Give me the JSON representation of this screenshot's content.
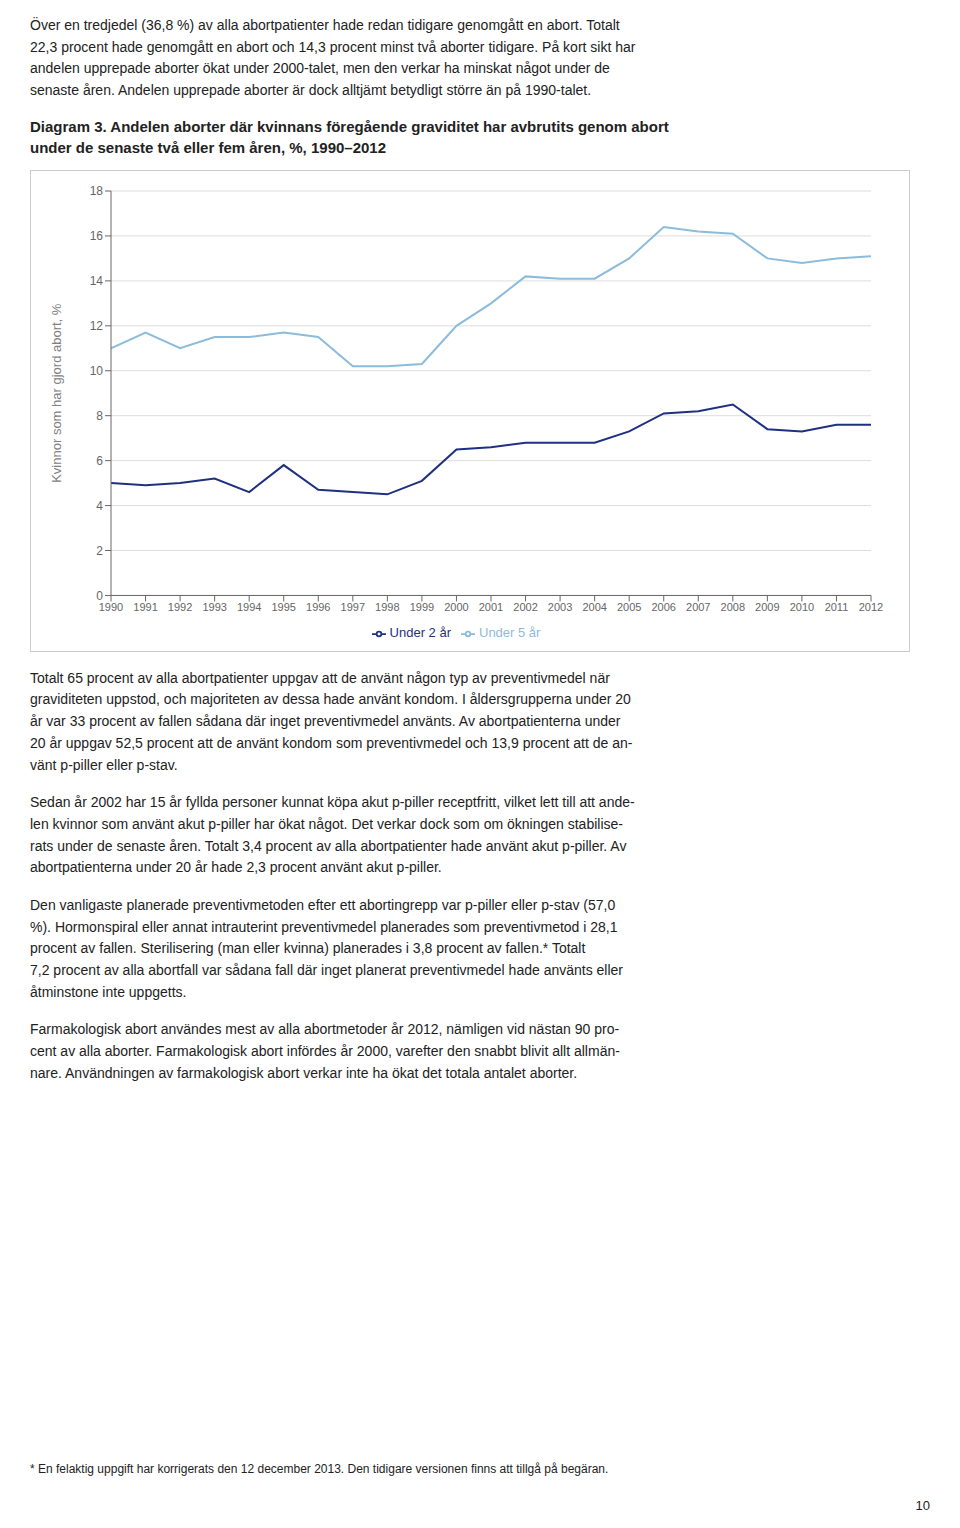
{
  "chart_data": {
    "type": "line",
    "title": "Diagram 3. Andelen aborter där kvinnans föregående graviditet har avbrutits genom abort\nunder de senaste två eller fem åren, %, 1990–2012",
    "y_label": "Kvinnor som har gjord abort, %",
    "x": [
      1990,
      1991,
      1992,
      1993,
      1994,
      1995,
      1996,
      1997,
      1998,
      1999,
      2000,
      2001,
      2002,
      2003,
      2004,
      2005,
      2006,
      2007,
      2008,
      2009,
      2010,
      2011,
      2012
    ],
    "xlim": [
      1990,
      2012
    ],
    "xticks": [
      1990,
      1991,
      1992,
      1993,
      1994,
      1995,
      1996,
      1997,
      1998,
      1999,
      2000,
      2001,
      2002,
      2003,
      2004,
      2005,
      2006,
      2007,
      2008,
      2009,
      2010,
      2011,
      2012
    ],
    "ylim": [
      0,
      18
    ],
    "yticks": [
      0,
      2,
      4,
      6,
      8,
      10,
      12,
      14,
      16,
      18
    ],
    "grid": true,
    "legend": "bottom",
    "series": [
      {
        "name": "Under 5 år",
        "color": "#8BBCDB",
        "values": [
          11.0,
          11.7,
          11.0,
          11.5,
          11.5,
          11.7,
          11.5,
          10.2,
          10.2,
          10.3,
          12.0,
          13.0,
          14.2,
          14.1,
          14.1,
          15.0,
          16.4,
          16.2,
          16.1,
          15.0,
          14.8,
          15.0,
          15.1
        ]
      },
      {
        "name": "Under 2 år",
        "color": "#1F3080",
        "values": [
          5.0,
          4.9,
          5.0,
          5.2,
          4.6,
          5.8,
          4.7,
          4.6,
          4.5,
          5.1,
          6.5,
          6.6,
          6.8,
          6.8,
          6.8,
          7.3,
          8.1,
          8.2,
          8.5,
          7.4,
          7.3,
          7.6,
          7.6
        ]
      }
    ],
    "annotations": [
      "Över en tredjedel (36,8 %) av alla abortpatienter hade redan tidigare genomgått en abort. Totalt\n22,3 procent hade genomgått en abort och 14,3 procent minst två aborter tidigare. På kort sikt har\nandelen upprepade aborter ökat under 2000-talet, men den verkar ha minskat något under de\nsenaste åren. Andelen upprepade aborter är dock alltjämt betydligt större än på 1990-talet.",
      "Totalt 65 procent av alla abortpatienter uppgav att de använt någon typ av preventivmedel när\ngraviditeten uppstod, och majoriteten av dessa hade använt kondom. I åldersgrupperna under 20\når var 33 procent av fallen sådana där inget preventivmedel använts. Av abortpatienterna under\n20 år uppgav 52,5 procent att de använt kondom som preventivmedel och 13,9 procent att de an-\nvänt p-piller eller p-stav.",
      "Sedan år 2002 har 15 år fyllda personer kunnat köpa akut p-piller receptfritt, vilket lett till att ande-\nlen kvinnor som använt akut p-piller har ökat något. Det verkar dock som om ökningen stabilise-\nrats under de senaste åren. Totalt 3,4 procent av alla abortpatienter hade använt akut p-piller. Av\nabortpatienterna under 20 år hade 2,3 procent använt akut p-piller.",
      "Den vanligaste planerade preventivmetoden efter ett abortingrepp var p-piller eller p-stav (57,0\n%). Hormonspiral eller annat intrauterint preventivmedel planerades som preventivmetod i 28,1\nprocent av fallen. Sterilisering (man eller kvinna) planerades i 3,8 procent av fallen.* Totalt\n7,2 procent av alla abortfall var sådana fall där inget planerat preventivmedel hade använts eller\nåtminstone inte uppgetts.",
      "Farmakologisk abort användes mest av alla abortmetoder år 2012, nämligen vid nästan 90 pro-\ncent av alla aborter. Farmakologisk abort infördes år 2000, varefter den snabbt blivit allt allmän-\nnare. Användningen av farmakologisk abort verkar inte ha ökat det totala antalet aborter.",
      "* En felaktig uppgift har korrigerats den 12 december 2013. Den tidigare versionen finns att tillgå på begäran.",
      "10"
    ]
  }
}
